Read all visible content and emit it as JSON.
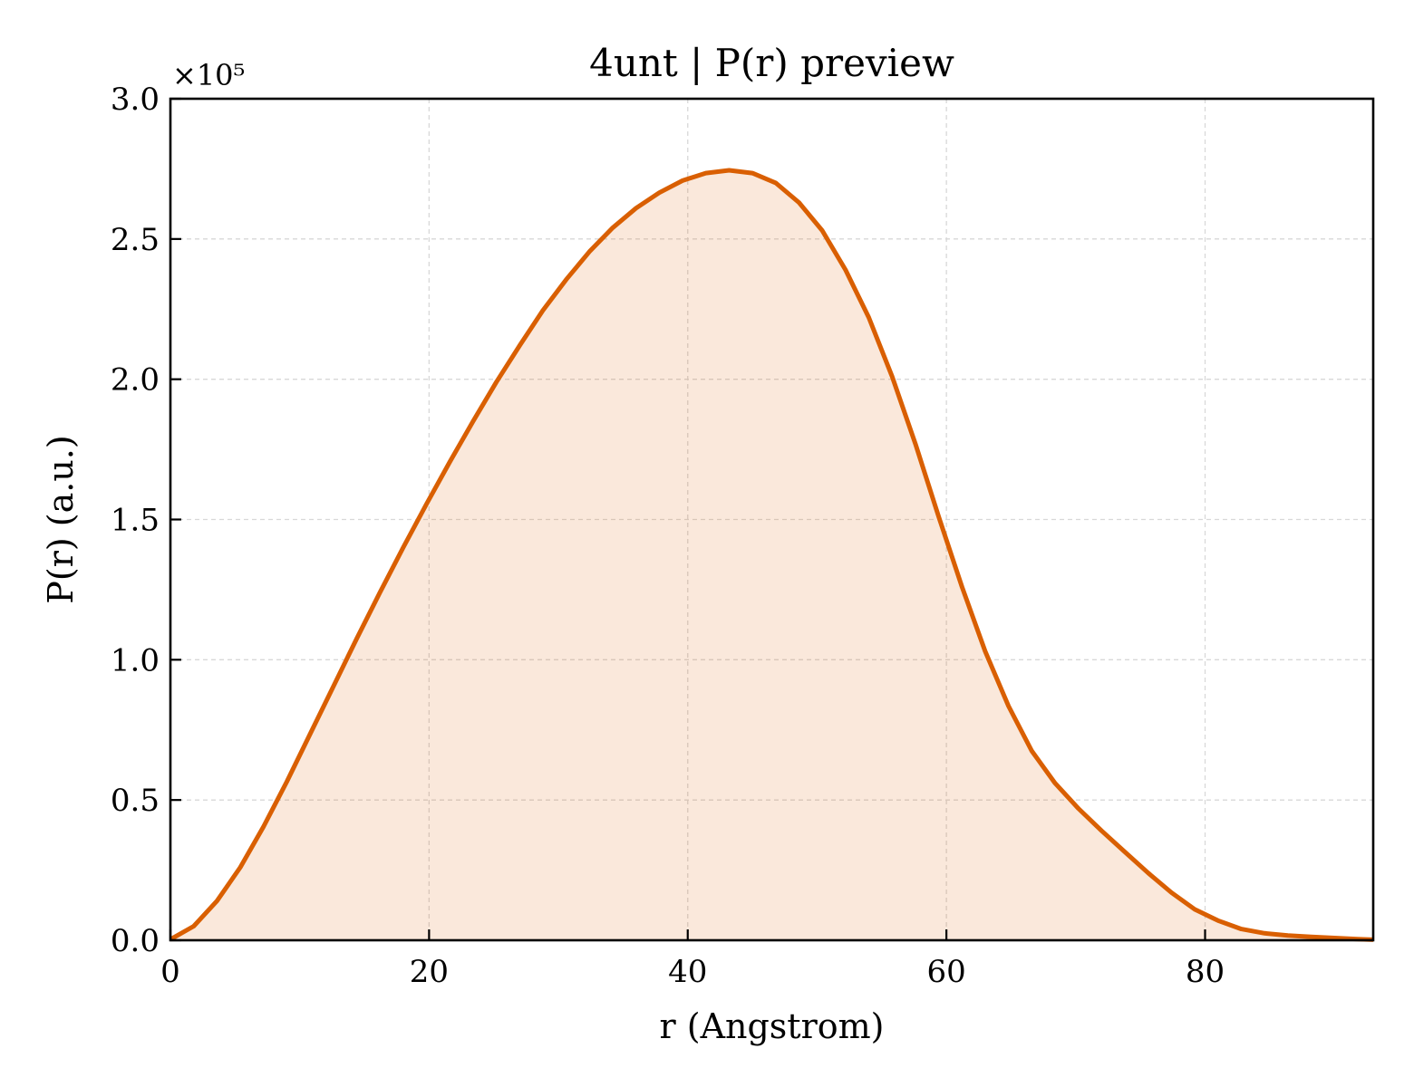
{
  "chart_data": {
    "type": "area",
    "title": "4unt | P(r) preview",
    "xlabel": "r (Angstrom)",
    "ylabel": "P(r) (a.u.)",
    "y_offset_label": "×10⁵",
    "xlim": [
      0,
      93
    ],
    "ylim": [
      0,
      3.0
    ],
    "x_ticks": [
      0,
      20,
      40,
      60,
      80
    ],
    "x_tick_labels": [
      "0",
      "20",
      "40",
      "60",
      "80"
    ],
    "y_ticks": [
      0,
      0.5,
      1.0,
      1.5,
      2.0,
      2.5,
      3.0
    ],
    "y_tick_labels": [
      "0.0",
      "0.5",
      "1.0",
      "1.5",
      "2.0",
      "2.5",
      "3.0"
    ],
    "grid": true,
    "colors": {
      "line": "#d95f02",
      "fill": "#d95f02",
      "fill_opacity": 0.14
    },
    "series": [
      {
        "x": [
          0,
          1.8,
          3.6,
          5.4,
          7.2,
          9,
          10.8,
          12.6,
          14.4,
          16.2,
          18,
          19.8,
          21.6,
          23.4,
          25.2,
          27,
          28.8,
          30.6,
          32.4,
          34.2,
          36,
          37.8,
          39.6,
          41.4,
          43.2,
          45,
          46.8,
          48.6,
          50.4,
          52.2,
          54,
          55.8,
          57.6,
          59.4,
          61.2,
          63,
          64.8,
          66.6,
          68.4,
          70.2,
          72,
          73.8,
          75.6,
          77.4,
          79.2,
          81,
          82.8,
          84.6,
          86.4,
          88.2,
          90,
          91.8,
          93
        ],
        "y": [
          0.003,
          0.05,
          0.14,
          0.26,
          0.405,
          0.565,
          0.735,
          0.905,
          1.075,
          1.24,
          1.4,
          1.555,
          1.705,
          1.85,
          1.99,
          2.12,
          2.245,
          2.355,
          2.455,
          2.54,
          2.61,
          2.665,
          2.708,
          2.735,
          2.745,
          2.735,
          2.7,
          2.63,
          2.53,
          2.39,
          2.22,
          2.01,
          1.77,
          1.51,
          1.26,
          1.03,
          0.835,
          0.675,
          0.56,
          0.47,
          0.39,
          0.315,
          0.24,
          0.17,
          0.11,
          0.07,
          0.04,
          0.025,
          0.017,
          0.012,
          0.008,
          0.004,
          0.002
        ]
      }
    ]
  }
}
